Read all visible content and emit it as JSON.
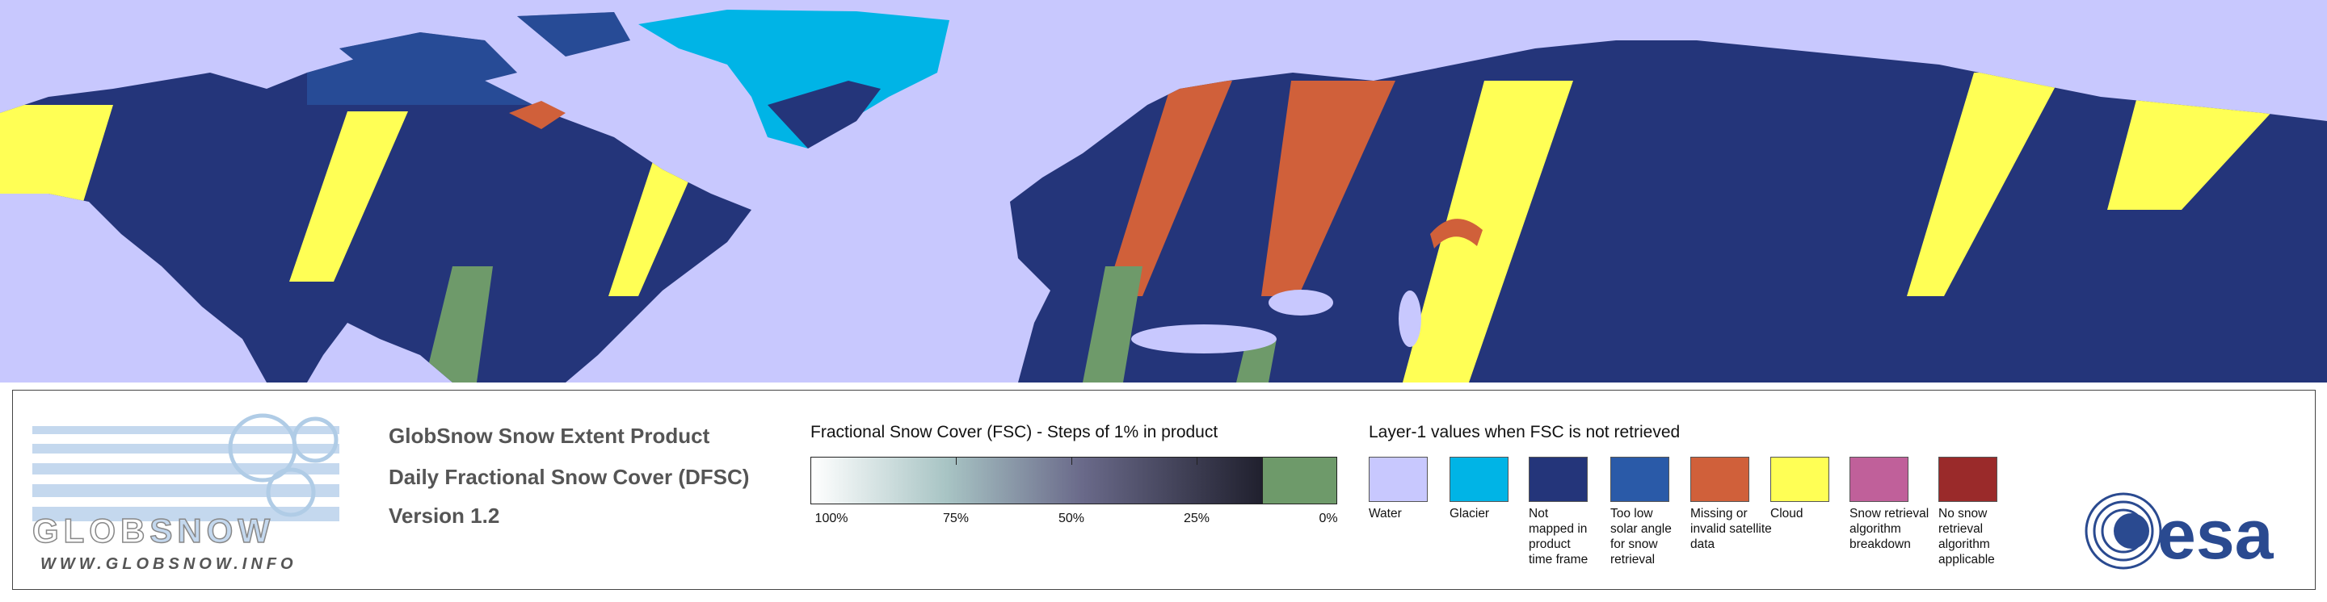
{
  "logo": {
    "glob": "GLOB",
    "snow": "SNOW",
    "url": "WWW.GLOBSNOW.INFO"
  },
  "product": {
    "title": "GlobSnow Snow Extent Product",
    "subtitle": "Daily Fractional Snow Cover (DFSC)",
    "version": "Version 1.2"
  },
  "fsc_legend": {
    "title": "Fractional Snow Cover (FSC) - Steps of 1% in product",
    "ticks": [
      "100%",
      "75%",
      "50%",
      "25%",
      "0%"
    ]
  },
  "layer1_legend": {
    "title": "Layer-1 values when FSC is not retrieved",
    "items": [
      {
        "lines": [
          "Water"
        ],
        "color": "#c8c8fe"
      },
      {
        "lines": [
          "Glacier"
        ],
        "color": "#00b4e6"
      },
      {
        "lines": [
          "Not",
          "mapped in",
          "product",
          "time frame"
        ],
        "color": "#24357a"
      },
      {
        "lines": [
          "Too low",
          "solar angle",
          "for snow",
          "retrieval"
        ],
        "color": "#2a5aa8"
      },
      {
        "lines": [
          "Missing or",
          "invalid satellite",
          "data"
        ],
        "color": "#d0603a"
      },
      {
        "lines": [
          "Cloud"
        ],
        "color": "#ffff55"
      },
      {
        "lines": [
          "Snow retrieval",
          "algorithm",
          "breakdown"
        ],
        "color": "#c0609a"
      },
      {
        "lines": [
          "No snow",
          "retrieval",
          "algorithm",
          "applicable"
        ],
        "color": "#9a2a2a"
      }
    ]
  },
  "agency": "esa"
}
